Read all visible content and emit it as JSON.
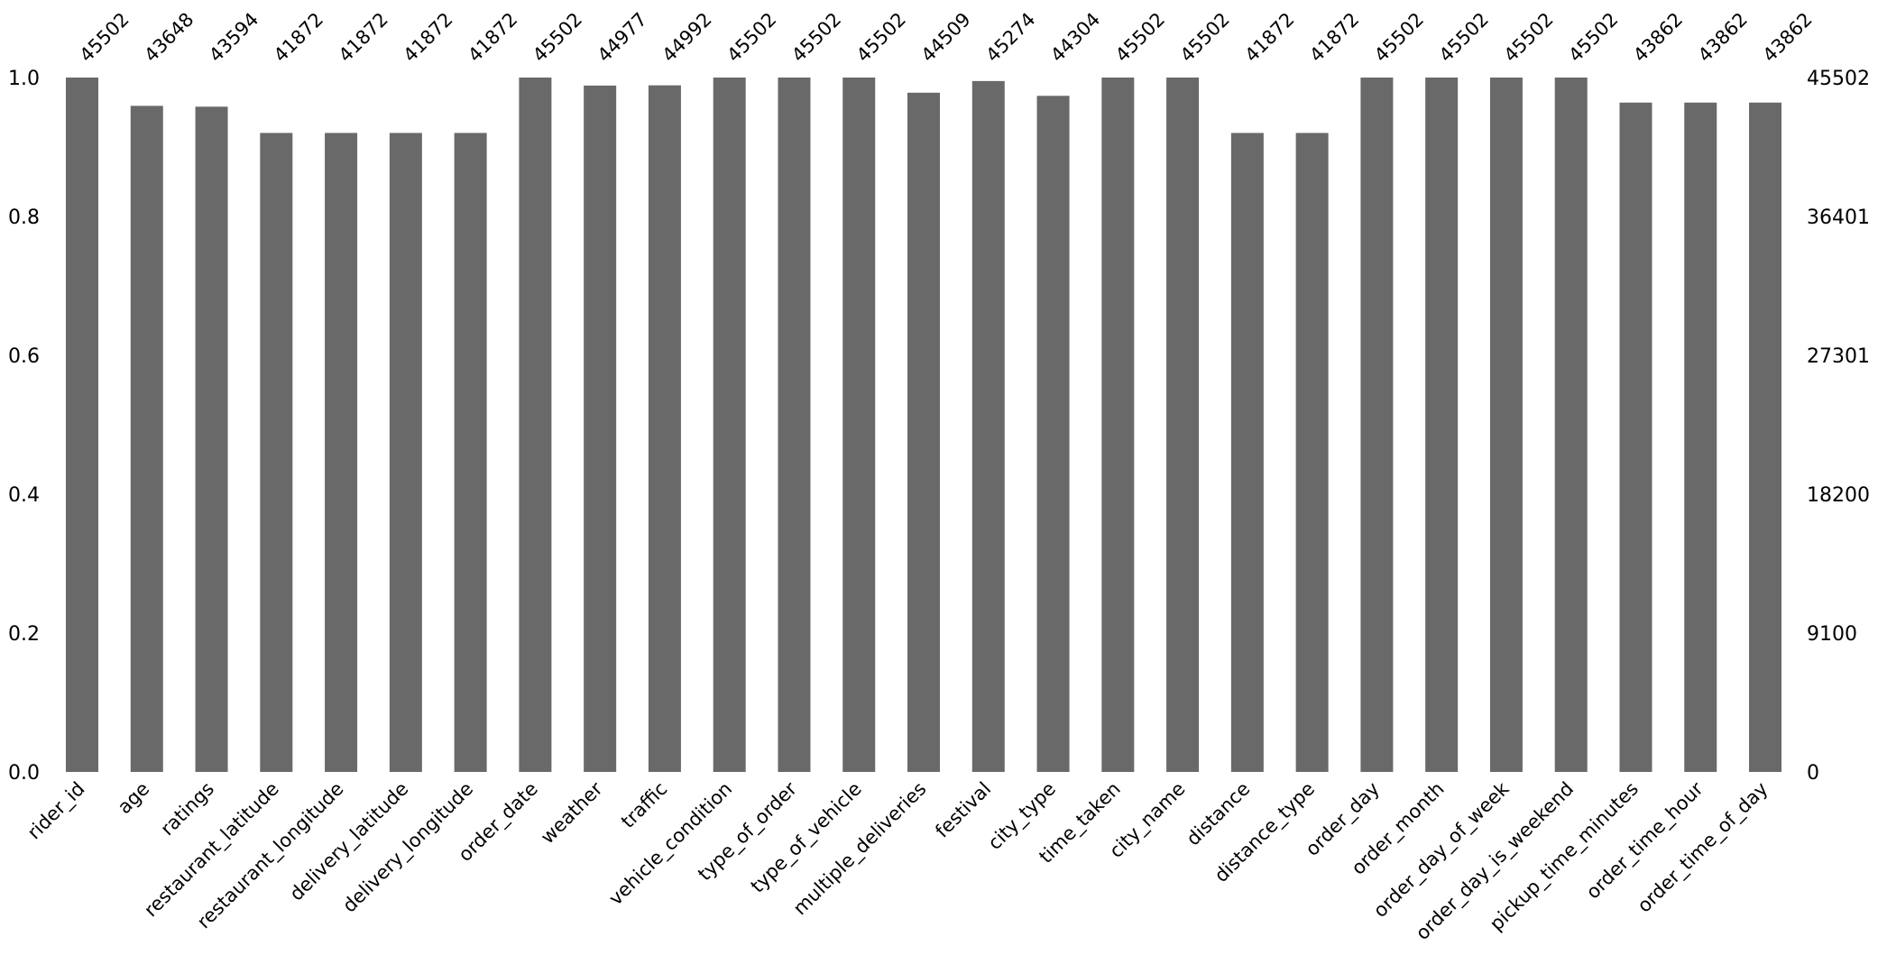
{
  "chart_data": {
    "type": "bar",
    "title": "",
    "xlabel": "",
    "ylabel": "",
    "ylim": [
      0,
      1.0
    ],
    "grid": false,
    "bar_color": "#696969",
    "categories": [
      "rider_id",
      "age",
      "ratings",
      "restaurant_latitude",
      "restaurant_longitude",
      "delivery_latitude",
      "delivery_longitude",
      "order_date",
      "weather",
      "traffic",
      "vehicle_condition",
      "type_of_order",
      "type_of_vehicle",
      "multiple_deliveries",
      "festival",
      "city_type",
      "time_taken",
      "city_name",
      "distance",
      "distance_type",
      "order_day",
      "order_month",
      "order_day_of_week",
      "order_day_is_weekend",
      "pickup_time_minutes",
      "order_time_hour",
      "order_time_of_day"
    ],
    "counts": [
      45502,
      43648,
      43594,
      41872,
      41872,
      41872,
      41872,
      45502,
      44977,
      44992,
      45502,
      45502,
      45502,
      44509,
      45274,
      44304,
      45502,
      45502,
      41872,
      41872,
      45502,
      45502,
      45502,
      45502,
      43862,
      43862,
      43862
    ],
    "total": 45502,
    "left_ticks": [
      "0.0",
      "0.2",
      "0.4",
      "0.6",
      "0.8",
      "1.0"
    ],
    "left_tick_values": [
      0,
      0.2,
      0.4,
      0.6,
      0.8,
      1.0
    ],
    "right_ticks": [
      "0",
      "9100",
      "18200",
      "27301",
      "36401",
      "45502"
    ]
  }
}
